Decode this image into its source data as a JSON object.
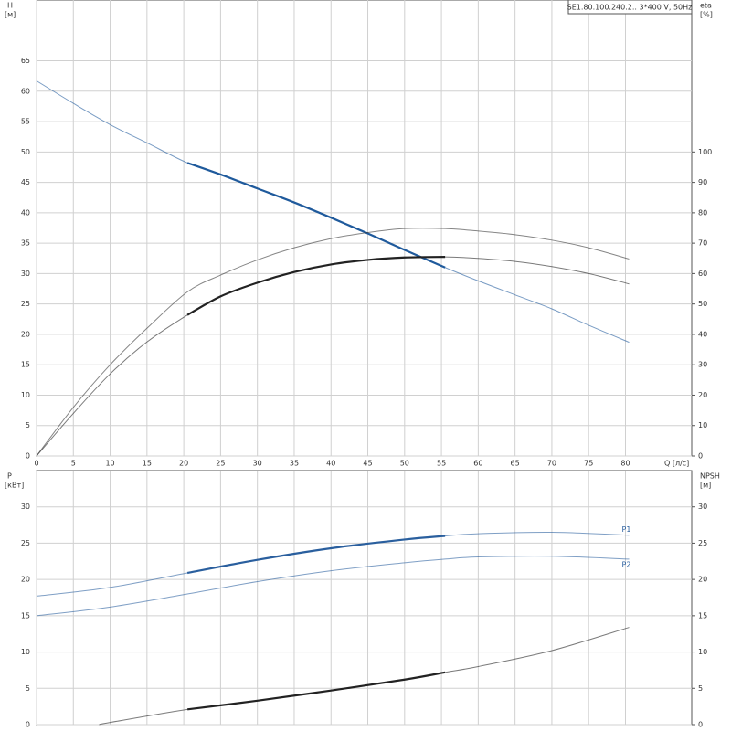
{
  "chart_data": [
    {
      "type": "line",
      "title": "SE1.80.100.240.2.. 3*400 V, 50Hz",
      "ylabel": "H",
      "yunit": "[м]",
      "y2label": "eta",
      "y2unit": "[%]",
      "xlabel": "Q [л/с]",
      "xlim": [
        0,
        89
      ],
      "ylim": [
        0,
        75
      ],
      "y2lim": [
        0,
        150
      ],
      "xticks": [
        0,
        5,
        10,
        15,
        20,
        25,
        30,
        35,
        40,
        45,
        50,
        55,
        60,
        65,
        70,
        75,
        80
      ],
      "yticks": [
        0,
        5,
        10,
        15,
        20,
        25,
        30,
        35,
        40,
        45,
        50,
        55,
        60,
        65
      ],
      "y2ticks": [
        0,
        10,
        20,
        30,
        40,
        50,
        60,
        70,
        80,
        90,
        100
      ],
      "grid": true,
      "duty_range": [
        20.5,
        55.5
      ],
      "series": [
        {
          "color": "#1f5a9c",
          "bold": true,
          "x": [
            0,
            5,
            10,
            15,
            20.5,
            25,
            30,
            35,
            40,
            45,
            50,
            55.5,
            60,
            65,
            70,
            75,
            80.5
          ],
          "values": [
            61.7,
            58,
            54.5,
            51.5,
            48.2,
            46.3,
            44,
            41.7,
            39.2,
            36.6,
            33.9,
            31,
            28.8,
            26.5,
            24.2,
            21.5,
            18.7
          ]
        },
        {
          "color": "#333333",
          "bold": false,
          "axis": "y2",
          "x": [
            0,
            5,
            10,
            15,
            20.5,
            25,
            30,
            35,
            40,
            45,
            50,
            55.5,
            60,
            65,
            70,
            75,
            80.5
          ],
          "values": [
            0,
            16,
            30,
            42,
            54,
            59.5,
            64.5,
            68.5,
            71.5,
            73.5,
            74.8,
            74.8,
            74,
            72.8,
            71,
            68.5,
            64.8
          ]
        },
        {
          "color": "#222222",
          "bold": true,
          "axis": "y2",
          "x": [
            0,
            5,
            10,
            15,
            20.5,
            25,
            30,
            35,
            40,
            45,
            50,
            55.5,
            60,
            65,
            70,
            75,
            80.5
          ],
          "values": [
            0,
            14,
            27,
            37.5,
            46.4,
            52.5,
            57,
            60.5,
            63,
            64.5,
            65.3,
            65.5,
            65,
            64,
            62.3,
            60,
            56.6
          ]
        }
      ]
    },
    {
      "type": "line",
      "ylabel": "P",
      "yunit": "[кВт]",
      "y2label": "NPSH",
      "y2unit": "[м]",
      "xlim": [
        0,
        89
      ],
      "ylim": [
        0,
        35
      ],
      "y2lim": [
        0,
        35
      ],
      "xticks": [
        0,
        5,
        10,
        15,
        20,
        25,
        30,
        35,
        40,
        45,
        50,
        55,
        60,
        65,
        70,
        75,
        80
      ],
      "yticks": [
        0,
        5,
        10,
        15,
        20,
        25,
        30
      ],
      "y2ticks": [
        0,
        5,
        10,
        15,
        20,
        25,
        30
      ],
      "grid": true,
      "duty_range": [
        20.5,
        55.5
      ],
      "series": [
        {
          "name": "P1",
          "color": "#2a5f9e",
          "bold": true,
          "x": [
            0,
            10,
            20.5,
            30,
            40,
            50,
            55.5,
            60,
            70,
            80.5
          ],
          "values": [
            17.7,
            18.9,
            20.9,
            22.7,
            24.3,
            25.5,
            26,
            26.3,
            26.5,
            26.1
          ]
        },
        {
          "name": "P2",
          "color": "#2a5f9e",
          "bold": false,
          "x": [
            0,
            10,
            20.5,
            30,
            40,
            50,
            55.5,
            60,
            70,
            80.5
          ],
          "values": [
            15,
            16.2,
            18,
            19.7,
            21.2,
            22.3,
            22.8,
            23.1,
            23.2,
            22.8
          ]
        },
        {
          "color": "#222222",
          "bold": true,
          "axis": "y2",
          "x": [
            8.5,
            10,
            20.5,
            30,
            40,
            50,
            55.5,
            60,
            70,
            80.5
          ],
          "values": [
            0,
            0.3,
            2.1,
            3.3,
            4.7,
            6.2,
            7.2,
            8,
            10.2,
            13.4
          ]
        }
      ]
    }
  ]
}
